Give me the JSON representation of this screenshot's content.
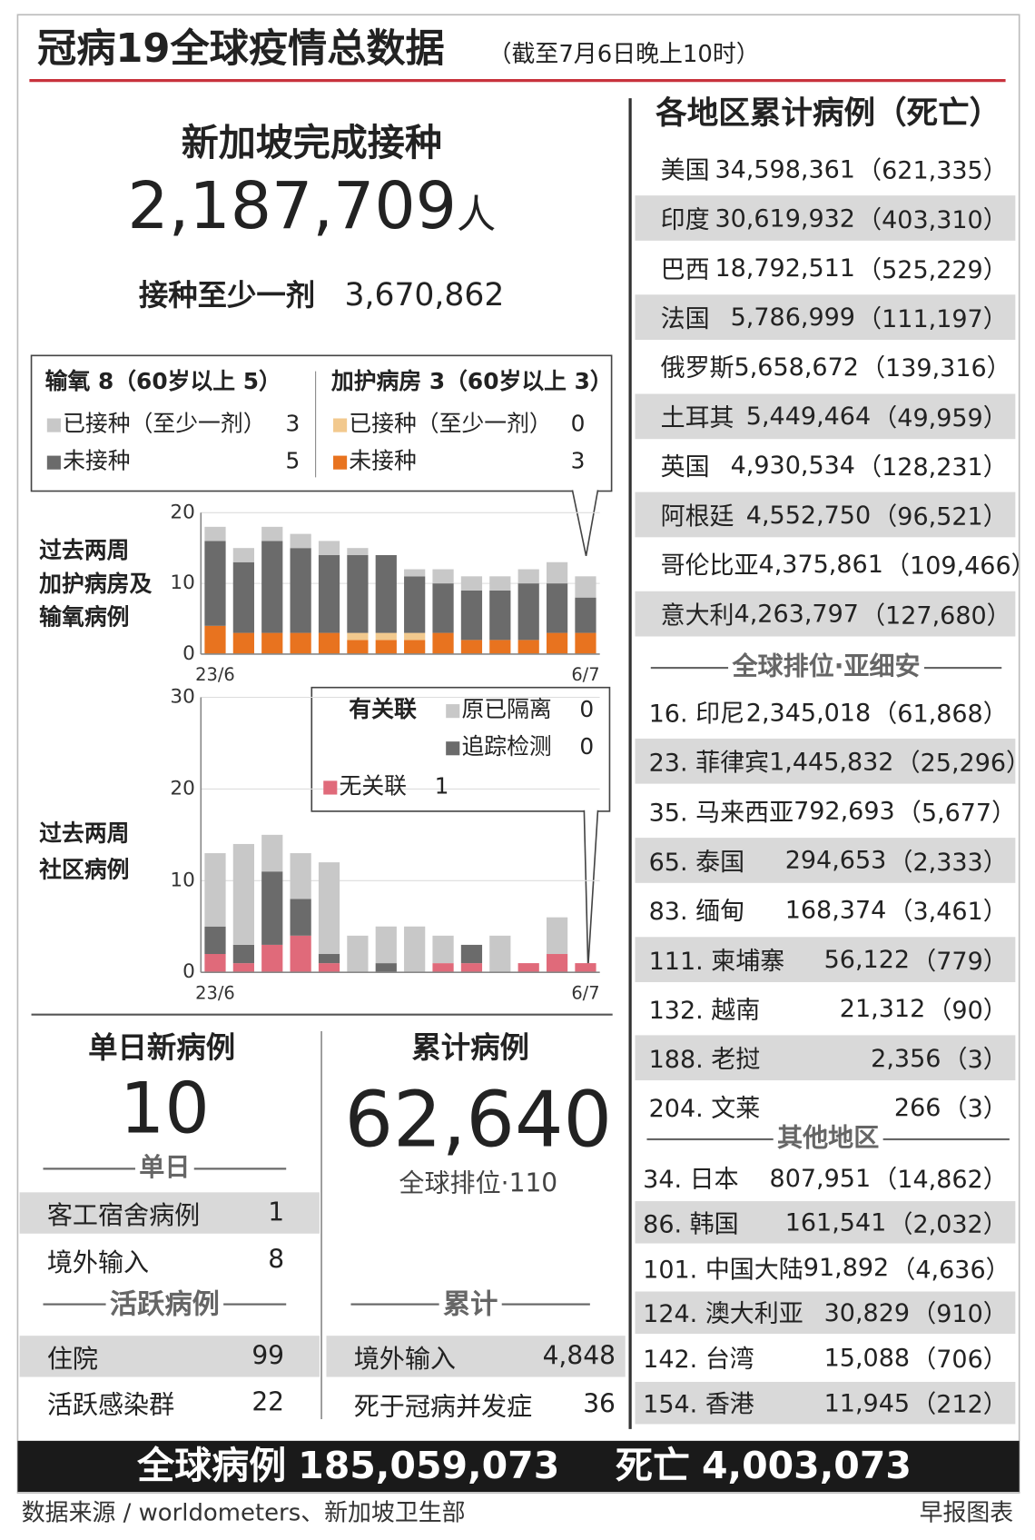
{
  "header": {
    "title": "冠病19全球疫情总数据",
    "subtitle": "（截至7月6日晚上10时）"
  },
  "vaccination": {
    "title": "新加坡完成接种",
    "count": "2,187,709",
    "unit": "人",
    "at_least_one_label": "接种至少一剂",
    "at_least_one": "3,670,862"
  },
  "chart_data": [
    {
      "type": "bar",
      "stacked": true,
      "title_lines": [
        "过去两周",
        "加护病房及",
        "输氧病例"
      ],
      "categories": [
        "23/6",
        null,
        null,
        null,
        null,
        null,
        null,
        null,
        null,
        null,
        null,
        null,
        null,
        "6/7"
      ],
      "legend_groups": [
        "输氧 8（60岁以上 5）",
        "加护病房 3（60岁以上 3）"
      ],
      "series": [
        {
          "name": "未接种",
          "count": 3,
          "color": "#e8731f",
          "values": [
            4,
            3,
            3,
            3,
            3,
            2,
            2,
            2,
            3,
            2,
            2,
            2,
            3,
            3
          ]
        },
        {
          "name": "已接种（至少一剂）",
          "count": 0,
          "color": "#f2c98e",
          "values": [
            0,
            0,
            0,
            0,
            0,
            1,
            1,
            1,
            0,
            0,
            0,
            0,
            0,
            0
          ]
        },
        {
          "name": "未接种",
          "count": 5,
          "color": "#6b6b6b",
          "values": [
            12,
            10,
            13,
            12,
            11,
            11,
            11,
            8,
            7,
            7,
            7,
            8,
            7,
            5
          ]
        },
        {
          "name": "已接种（至少一剂）",
          "count": 3,
          "color": "#c8c8c8",
          "values": [
            2,
            2,
            2,
            2,
            2,
            1,
            0,
            1,
            2,
            2,
            2,
            2,
            3,
            3
          ]
        }
      ],
      "ylim": [
        0,
        20
      ],
      "yticks": [
        0,
        10,
        20
      ],
      "grid": true
    },
    {
      "type": "bar",
      "stacked": true,
      "title_lines": [
        "过去两周",
        "社区病例"
      ],
      "categories": [
        "23/6",
        null,
        null,
        null,
        null,
        null,
        null,
        null,
        null,
        null,
        null,
        null,
        null,
        "6/7"
      ],
      "legend_groups": [
        "有关联"
      ],
      "series": [
        {
          "name": "无关联",
          "count": 1,
          "color": "#e06a7a",
          "values": [
            2,
            1,
            3,
            4,
            1,
            0,
            0,
            0,
            1,
            1,
            0,
            1,
            2,
            1
          ]
        },
        {
          "name": "追踪检测",
          "count": 0,
          "color": "#6b6b6b",
          "values": [
            3,
            2,
            8,
            4,
            1,
            0,
            1,
            0,
            0,
            2,
            0,
            0,
            0,
            0
          ]
        },
        {
          "name": "原已隔离",
          "count": 0,
          "color": "#c8c8c8",
          "values": [
            8,
            11,
            4,
            5,
            10,
            4,
            4,
            5,
            3,
            0,
            4,
            0,
            4,
            0
          ]
        }
      ],
      "ylim": [
        0,
        30
      ],
      "yticks": [
        0,
        10,
        20,
        30
      ],
      "grid": true
    }
  ],
  "daily": {
    "title": "单日新病例",
    "count": "10",
    "section": "单日",
    "rows": [
      {
        "label": "客工宿舍病例",
        "value": "1"
      },
      {
        "label": "境外输入",
        "value": "8"
      }
    ],
    "active_section": "活跃病例",
    "active_rows": [
      {
        "label": "住院",
        "value": "99"
      },
      {
        "label": "活跃感染群",
        "value": "22"
      }
    ]
  },
  "cumulative": {
    "title": "累计病例",
    "count": "62,640",
    "rank": "全球排位·110",
    "section": "累计",
    "rows": [
      {
        "label": "境外输入",
        "value": "4,848"
      },
      {
        "label": "死于冠病并发症",
        "value": "36"
      }
    ]
  },
  "regions": {
    "title": "各地区累计病例（死亡）",
    "top": [
      {
        "name": "美国",
        "cases": "34,598,361",
        "deaths": "（621,335）"
      },
      {
        "name": "印度",
        "cases": "30,619,932",
        "deaths": "（403,310）"
      },
      {
        "name": "巴西",
        "cases": "18,792,511",
        "deaths": "（525,229）"
      },
      {
        "name": "法国",
        "cases": "5,786,999",
        "deaths": "（111,197）"
      },
      {
        "name": "俄罗斯",
        "cases": "5,658,672",
        "deaths": "（139,316）"
      },
      {
        "name": "土耳其",
        "cases": "5,449,464",
        "deaths": "（49,959）"
      },
      {
        "name": "英国",
        "cases": "4,930,534",
        "deaths": "（128,231）"
      },
      {
        "name": "阿根廷",
        "cases": "4,552,750",
        "deaths": "（96,521）"
      },
      {
        "name": "哥伦比亚",
        "cases": "4,375,861",
        "deaths": "（109,466）"
      },
      {
        "name": "意大利",
        "cases": "4,263,797",
        "deaths": "（127,680）"
      }
    ],
    "asia_title": "全球排位·亚细安",
    "asia": [
      {
        "name": "16. 印尼",
        "cases": "2,345,018",
        "deaths": "（61,868）"
      },
      {
        "name": "23. 菲律宾",
        "cases": "1,445,832",
        "deaths": "（25,296）"
      },
      {
        "name": "35. 马来西亚",
        "cases": "792,693",
        "deaths": "（5,677）"
      },
      {
        "name": "65. 泰国",
        "cases": "294,653",
        "deaths": "（2,333）"
      },
      {
        "name": "83. 缅甸",
        "cases": "168,374",
        "deaths": "（3,461）"
      },
      {
        "name": "111. 柬埔寨",
        "cases": "56,122",
        "deaths": "（779）"
      },
      {
        "name": "132. 越南",
        "cases": "21,312",
        "deaths": "（90）"
      },
      {
        "name": "188. 老挝",
        "cases": "2,356",
        "deaths": "（3）"
      },
      {
        "name": "204. 文莱",
        "cases": "266",
        "deaths": "（3）"
      }
    ],
    "other_title": "其他地区",
    "other": [
      {
        "name": "34. 日本",
        "cases": "807,951",
        "deaths": "（14,862）"
      },
      {
        "name": "86. 韩国",
        "cases": "161,541",
        "deaths": "（2,032）"
      },
      {
        "name": "101. 中国大陆",
        "cases": "91,892",
        "deaths": "（4,636）"
      },
      {
        "name": "124. 澳大利亚",
        "cases": "30,829",
        "deaths": "（910）"
      },
      {
        "name": "142. 台湾",
        "cases": "15,088",
        "deaths": "（706）"
      },
      {
        "name": "154. 香港",
        "cases": "11,945",
        "deaths": "（212）"
      }
    ]
  },
  "footer": {
    "global_label": "全球病例",
    "global": "185,059,073",
    "deaths_label": "死亡",
    "deaths": "4,003,073",
    "source": "数据来源 / worldometers、新加坡卫生部",
    "credit": "早报图表"
  }
}
